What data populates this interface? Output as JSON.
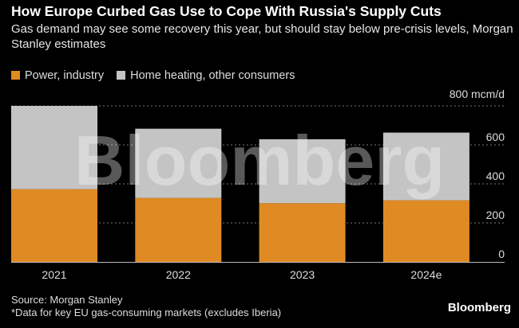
{
  "title": "How Europe Curbed Gas Use to Cope With Russia's Supply Cuts",
  "subtitle": "Gas demand may see some recovery this year, but should stay below pre-crisis levels, Morgan Stanley estimates",
  "source": "Source: Morgan Stanley",
  "note": "*Data for key EU gas-consuming markets (excludes Iberia)",
  "logo": "Bloomberg",
  "watermark": "Bloomberg",
  "chart_data": {
    "type": "bar",
    "stacked": true,
    "categories": [
      "2021",
      "2022",
      "2023",
      "2024e"
    ],
    "series": [
      {
        "name": "Power, industry",
        "color": "#e08a24",
        "values": [
          373,
          328,
          301,
          316
        ]
      },
      {
        "name": "Home heating, other consumers",
        "color": "#c4c4c4",
        "values": [
          427,
          355,
          328,
          347
        ]
      }
    ],
    "yticks": [
      0,
      200,
      400,
      600,
      800
    ],
    "ytick_labels": [
      "0",
      "200",
      "400",
      "600",
      "800 mcm/d"
    ],
    "ylim": [
      0,
      800
    ],
    "grid": true,
    "legend_position": "top-left"
  }
}
